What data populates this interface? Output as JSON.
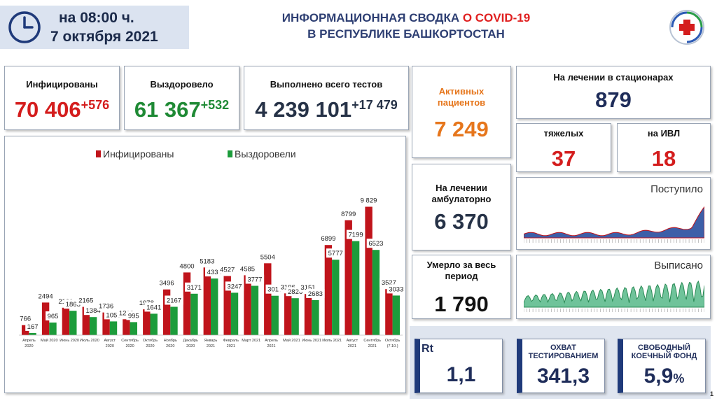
{
  "header": {
    "time_label": "на 08:00 ч.",
    "date_label": "7 октября 2021",
    "title_part1": "ИНФОРМАЦИОННАЯ СВОДКА ",
    "title_accent": "О COVID-19",
    "title_line2": "В РЕСПУБЛИКЕ БАШКОРТОСТАН"
  },
  "stats": {
    "infected": {
      "label": "Инфицированы",
      "value": "70 406",
      "increment": "+576",
      "color": "#d41d1d"
    },
    "recovered": {
      "label": "Выздоровело",
      "value": "61 367",
      "increment": "+532",
      "color": "#1f8a35"
    },
    "tests": {
      "label": "Выполнено всего тестов",
      "value": "4 239 101",
      "increment": "+17 479"
    },
    "active": {
      "label_line1": "Активных",
      "label_line2": "пациентов",
      "value": "7 249",
      "color": "#e6761c"
    },
    "ambulatory": {
      "label_line1": "На лечении",
      "label_line2": "амбулаторно",
      "value": "6 370"
    },
    "deaths": {
      "label_line1": "Умерло за весь",
      "label_line2": "период",
      "value": "1 790"
    },
    "hospital": {
      "label": "На лечении в стационарах",
      "value": "879"
    },
    "severe": {
      "label": "тяжелых",
      "value": "37"
    },
    "ventilator": {
      "label": "на ИВЛ",
      "value": "18"
    }
  },
  "indicators": {
    "rt": {
      "label": "Rt",
      "value": "1,1"
    },
    "testing": {
      "label_line1": "ОХВАТ",
      "label_line2": "ТЕСТИРОВАНИЕМ",
      "value": "341,3"
    },
    "beds": {
      "label_line1": "СВОБОДНЫЙ",
      "label_line2": "КОЕЧНЫЙ ФОНД",
      "value": "5,9",
      "unit": "%"
    }
  },
  "sparklines": {
    "admitted_label": "Поступило",
    "discharged_label": "Выписано"
  },
  "page_number": "1",
  "colors": {
    "infected": "#c0141b",
    "recovered": "#1c9c3b",
    "navy": "#1f3a7a"
  },
  "chart_data": {
    "type": "bar",
    "categories": [
      [
        "Апрель",
        "2020"
      ],
      [
        "Май 2020"
      ],
      [
        "Июнь 2020"
      ],
      [
        "Июль 2020"
      ],
      [
        "Август",
        "2020"
      ],
      [
        "Сентябрь",
        "2020"
      ],
      [
        "Октябрь",
        "2020"
      ],
      [
        "Ноябрь",
        "2020"
      ],
      [
        "Декабрь",
        "2020"
      ],
      [
        "Январь",
        "2021"
      ],
      [
        "Февраль",
        "2021"
      ],
      [
        "Март 2021"
      ],
      [
        "Апрель",
        "2021"
      ],
      [
        "Май 2021"
      ],
      [
        "Июнь 2021"
      ],
      [
        "Июль 2021"
      ],
      [
        "Август",
        "2021"
      ],
      [
        "Сентябрь",
        "2021"
      ],
      [
        "Октябрь",
        "(7.10.)"
      ]
    ],
    "series": [
      {
        "name": "Инфицированы",
        "values": [
          766,
          2494,
          2101,
          2165,
          1736,
          1218,
          1978,
          3496,
          4800,
          5183,
          4527,
          4585,
          5504,
          3196,
          3151,
          6899,
          8799,
          9829,
          3527
        ],
        "labels": [
          "766",
          "2494",
          "2101",
          "2165",
          "1736",
          "1218",
          "1978",
          "3496",
          "4800",
          "5183",
          "4527",
          "4585",
          "5504",
          "3196",
          "3151",
          "6899",
          "8799",
          "9 829",
          "3527"
        ]
      },
      {
        "name": "Выздоровели",
        "values": [
          167,
          965,
          1863,
          1384,
          1050,
          995,
          1641,
          2167,
          3171,
          4334,
          3247,
          3777,
          3017,
          2826,
          2683,
          5777,
          7199,
          6523,
          3033
        ],
        "labels": [
          "167",
          "965",
          "1863",
          "1384",
          "1050",
          "995",
          "1641",
          "2167",
          "3171",
          "4334",
          "3247",
          "3777",
          "3017",
          "2826",
          "2683",
          "5777",
          "7199",
          "6523",
          "3033"
        ]
      }
    ],
    "ylim": [
      0,
      10500
    ],
    "legend": "top",
    "grid": false
  }
}
